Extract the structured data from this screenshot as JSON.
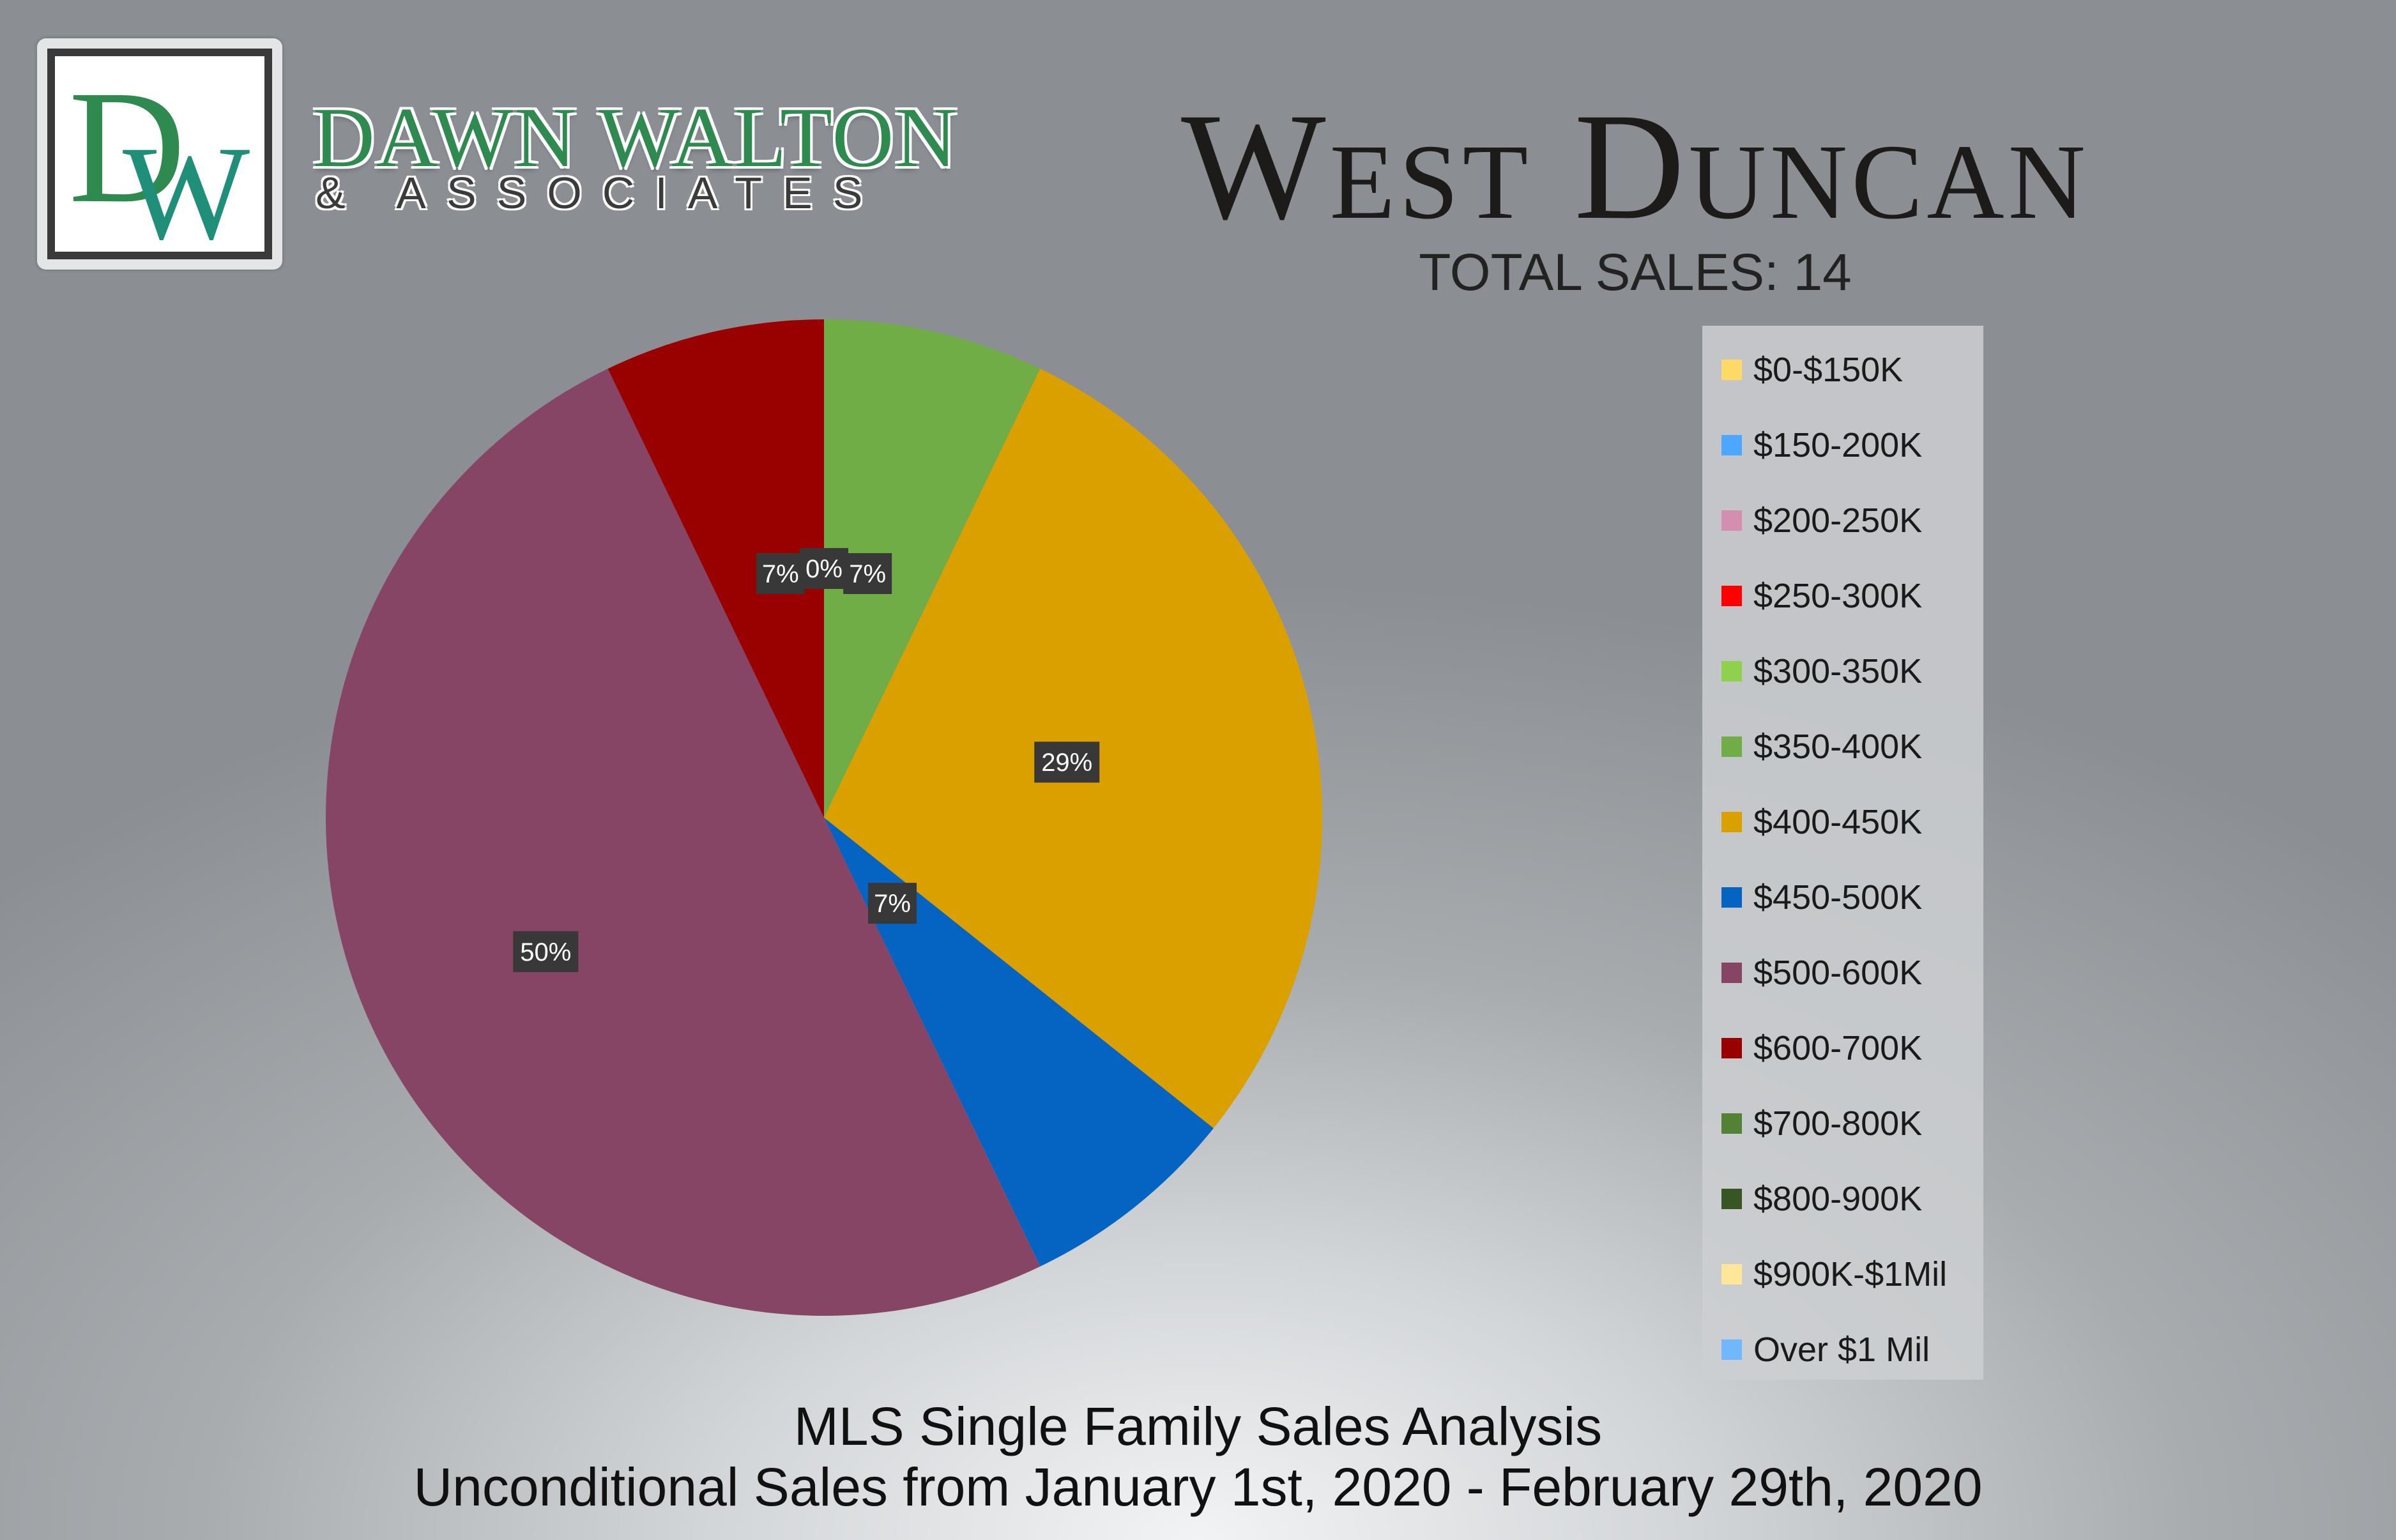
{
  "brand": {
    "logo_letters": "DW",
    "name": "DAWN WALTON",
    "sub": "& ASSOCIATES"
  },
  "header": {
    "title": "West Duncan",
    "total_sales": "TOTAL SALES: 14"
  },
  "footer": {
    "line1": "MLS Single Family Sales Analysis",
    "line2": "Unconditional Sales from January 1st, 2020 - February 29th, 2020"
  },
  "chart_data": {
    "type": "pie",
    "title": "West Duncan",
    "subtitle": "TOTAL SALES: 14",
    "legend_position": "right",
    "categories": [
      "$0-$150K",
      "$150-200K",
      "$200-250K",
      "$250-300K",
      "$300-350K",
      "$350-400K",
      "$400-450K",
      "$450-500K",
      "$500-600K",
      "$600-700K",
      "$700-800K",
      "$800-900K",
      "$900K-$1Mil",
      "Over $1 Mil"
    ],
    "colors": [
      "#ffd966",
      "#4da6ff",
      "#d48fb0",
      "#ff0000",
      "#8fd14f",
      "#70ad47",
      "#d9a000",
      "#0563c1",
      "#874565",
      "#990000",
      "#548235",
      "#375623",
      "#ffe699",
      "#6fb7ff"
    ],
    "counts": [
      0,
      0,
      0,
      0,
      0,
      1,
      4,
      1,
      7,
      1,
      0,
      0,
      0,
      0
    ],
    "slices": [
      {
        "label": "$350-400K",
        "count": 1,
        "percent_label": "7%",
        "color": "#70ad47"
      },
      {
        "label": "$400-450K",
        "count": 4,
        "percent_label": "29%",
        "color": "#d9a000"
      },
      {
        "label": "$450-500K",
        "count": 1,
        "percent_label": "7%",
        "color": "#0563c1"
      },
      {
        "label": "$500-600K",
        "count": 7,
        "percent_label": "50%",
        "color": "#874565"
      },
      {
        "label": "$600-700K",
        "count": 1,
        "percent_label": "7%",
        "color": "#990000"
      }
    ],
    "extra_label": "0%"
  }
}
